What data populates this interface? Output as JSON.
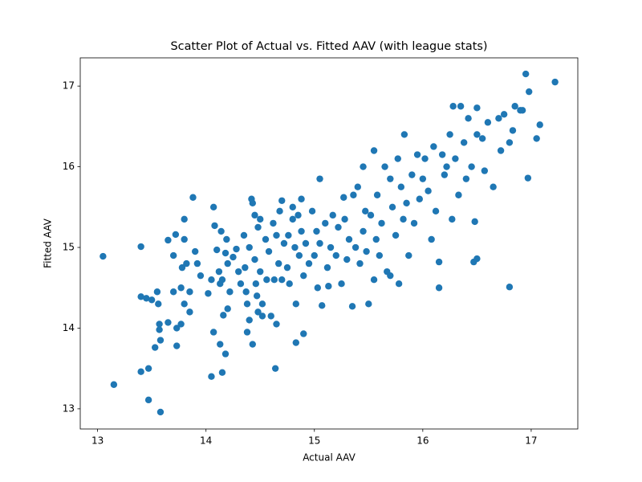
{
  "chart_data": {
    "type": "scatter",
    "title": "Scatter Plot of Actual vs. Fitted AAV (with league stats)",
    "x_label": "Actual AAV",
    "y_label": "Fitted AAV",
    "color": "#1f77b4",
    "xlim": [
      12.84,
      17.43
    ],
    "ylim": [
      12.75,
      17.35
    ],
    "xticks": [
      13,
      14,
      15,
      16,
      17
    ],
    "yticks": [
      13,
      14,
      15,
      16,
      17
    ],
    "x": [
      13.05,
      13.15,
      13.4,
      13.4,
      13.4,
      13.47,
      13.47,
      13.58,
      13.53,
      13.57,
      13.57,
      13.58,
      13.55,
      13.5,
      13.45,
      13.56,
      13.65,
      13.65,
      13.7,
      13.7,
      13.72,
      13.73,
      13.73,
      13.77,
      13.77,
      13.78,
      13.8,
      13.8,
      13.82,
      13.85,
      13.85,
      13.8,
      13.88,
      13.9,
      13.92,
      13.95,
      14.02,
      14.05,
      14.05,
      14.07,
      14.07,
      14.08,
      14.1,
      14.12,
      14.13,
      14.13,
      14.14,
      14.15,
      14.15,
      14.16,
      14.18,
      14.18,
      14.19,
      14.2,
      14.2,
      14.22,
      14.25,
      14.28,
      14.3,
      14.32,
      14.35,
      14.36,
      14.37,
      14.38,
      14.38,
      14.4,
      14.4,
      14.42,
      14.43,
      14.43,
      14.45,
      14.45,
      14.46,
      14.47,
      14.48,
      14.48,
      14.5,
      14.5,
      14.52,
      14.52,
      14.55,
      14.56,
      14.58,
      14.6,
      14.62,
      14.63,
      14.64,
      14.65,
      14.65,
      14.67,
      14.68,
      14.7,
      14.7,
      14.72,
      14.75,
      14.76,
      14.77,
      14.8,
      14.8,
      14.82,
      14.83,
      14.83,
      14.85,
      14.86,
      14.88,
      14.88,
      14.9,
      14.9,
      14.92,
      14.95,
      14.98,
      15.0,
      15.02,
      15.03,
      15.05,
      15.05,
      15.07,
      15.1,
      15.12,
      15.13,
      15.15,
      15.17,
      15.2,
      15.22,
      15.25,
      15.27,
      15.28,
      15.3,
      15.32,
      15.35,
      15.36,
      15.38,
      15.4,
      15.42,
      15.45,
      15.45,
      15.47,
      15.48,
      15.5,
      15.52,
      15.55,
      15.55,
      15.57,
      15.58,
      15.6,
      15.62,
      15.65,
      15.67,
      15.7,
      15.7,
      15.72,
      15.75,
      15.77,
      15.78,
      15.8,
      15.82,
      15.83,
      15.85,
      15.87,
      15.9,
      15.92,
      15.95,
      15.97,
      16.0,
      16.02,
      16.05,
      16.08,
      16.1,
      16.12,
      16.15,
      16.15,
      16.18,
      16.2,
      16.22,
      16.25,
      16.27,
      16.3,
      16.33,
      16.35,
      16.38,
      16.4,
      16.42,
      16.45,
      16.47,
      16.48,
      16.5,
      16.5,
      16.55,
      16.57,
      16.6,
      16.65,
      16.7,
      16.72,
      16.75,
      16.8,
      16.8,
      16.83,
      16.85,
      16.9,
      16.95,
      16.97,
      16.98,
      17.05,
      17.08,
      17.22,
      16.92,
      16.5,
      16.28
    ],
    "values": [
      14.89,
      13.3,
      15.01,
      14.39,
      13.46,
      13.5,
      13.11,
      12.96,
      13.76,
      14.05,
      13.98,
      13.85,
      14.45,
      14.35,
      14.37,
      14.3,
      15.09,
      14.07,
      14.9,
      14.45,
      15.16,
      14.0,
      13.78,
      14.05,
      14.5,
      14.75,
      15.35,
      15.1,
      14.8,
      14.45,
      14.2,
      14.3,
      15.62,
      14.95,
      14.8,
      14.65,
      14.43,
      14.6,
      13.4,
      13.95,
      15.5,
      15.27,
      14.97,
      14.7,
      14.55,
      13.8,
      15.2,
      14.6,
      13.45,
      14.16,
      14.93,
      13.68,
      15.1,
      14.8,
      14.24,
      14.45,
      14.88,
      14.98,
      14.7,
      14.55,
      15.15,
      14.75,
      14.45,
      13.95,
      14.3,
      14.1,
      15.0,
      15.6,
      15.55,
      13.8,
      15.4,
      14.85,
      14.55,
      14.4,
      15.25,
      14.2,
      15.35,
      14.7,
      14.3,
      14.15,
      15.1,
      14.6,
      14.95,
      14.15,
      15.3,
      14.6,
      13.5,
      15.15,
      14.05,
      14.8,
      15.45,
      15.58,
      14.6,
      15.05,
      14.75,
      15.15,
      14.55,
      15.5,
      15.35,
      15.0,
      14.3,
      13.82,
      15.4,
      14.9,
      15.6,
      15.2,
      14.65,
      13.93,
      15.05,
      14.8,
      15.45,
      14.9,
      15.2,
      14.5,
      15.85,
      15.05,
      14.28,
      15.3,
      14.75,
      14.52,
      15.0,
      15.4,
      14.9,
      15.25,
      14.55,
      15.62,
      15.35,
      14.85,
      15.1,
      14.27,
      15.65,
      15.0,
      15.75,
      14.8,
      16.0,
      15.2,
      15.45,
      14.95,
      14.3,
      15.4,
      16.2,
      14.6,
      15.1,
      15.65,
      14.9,
      15.3,
      16.0,
      14.7,
      15.85,
      14.65,
      15.5,
      15.15,
      16.1,
      14.55,
      15.75,
      15.35,
      16.4,
      15.55,
      14.9,
      15.9,
      15.3,
      16.15,
      15.6,
      15.85,
      16.1,
      15.7,
      15.1,
      16.25,
      15.45,
      14.82,
      14.5,
      16.15,
      15.9,
      16.0,
      16.4,
      15.35,
      16.1,
      15.65,
      16.75,
      16.3,
      15.85,
      16.6,
      16.0,
      14.82,
      15.32,
      16.4,
      14.86,
      16.35,
      15.95,
      16.55,
      15.75,
      16.6,
      16.2,
      16.65,
      16.3,
      14.51,
      16.45,
      16.75,
      16.7,
      17.15,
      15.86,
      16.93,
      16.35,
      16.52,
      17.05,
      16.7,
      16.73,
      16.75
    ]
  }
}
